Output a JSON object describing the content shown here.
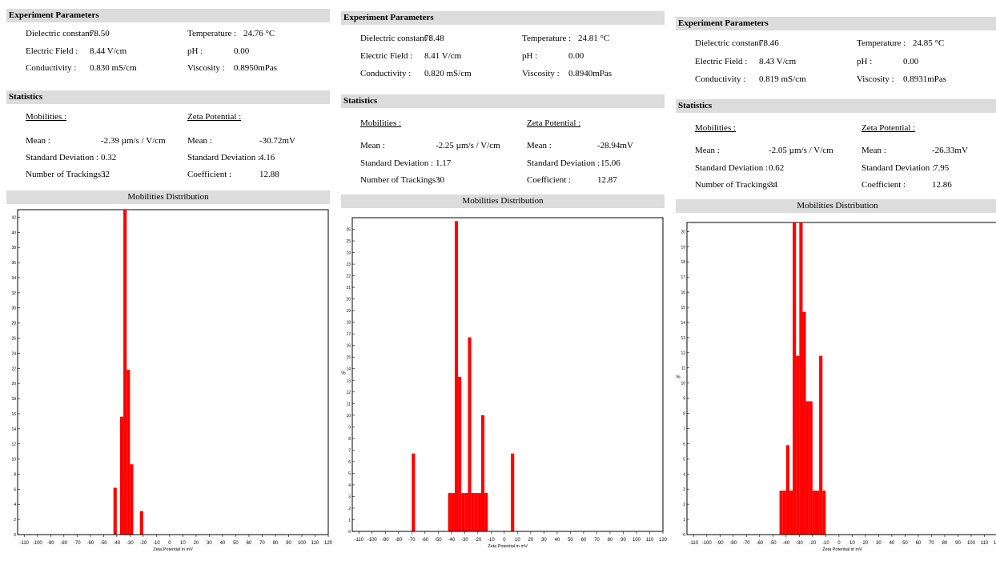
{
  "panels": [
    {
      "experiment": {
        "header": "Experiment Parameters",
        "dielectric_label": "Dielectric constant :",
        "dielectric": "78.50",
        "field_label": "Electric Field :",
        "field": "8.44 V/cm",
        "conductivity_label": "Conductivity :",
        "conductivity": "0.830 mS/cm",
        "temperature_label": "Temperature :",
        "temperature": "24.76 °C",
        "ph_label": "pH :",
        "ph": "0.00",
        "viscosity_label": "Viscosity :",
        "viscosity": "0.8950mPas"
      },
      "statistics": {
        "header": "Statistics",
        "mobilities_label": "Mobilities :",
        "zeta_label": "Zeta Potential :",
        "mean_label": "Mean :",
        "mob_mean": "-2.39 µm/s / V/cm",
        "sd_label": "Standard Deviation :",
        "mob_sd": "0.32",
        "n_label": "Number of Trackings :",
        "mob_n": "32",
        "zmean_label": "Mean :",
        "zeta_mean": "-30.72mV",
        "zsd_label": "Standard Deviation :",
        "zeta_sd": "4.16",
        "coef_label": "Coefficient :",
        "zeta_coef": "12.88"
      },
      "dist_header": "Mobilities Distribution"
    },
    {
      "experiment": {
        "header": "Experiment Parameters",
        "dielectric_label": "Dielectric constant :",
        "dielectric": "78.48",
        "field_label": "Electric Field :",
        "field": "8.41 V/cm",
        "conductivity_label": "Conductivity :",
        "conductivity": "0.820 mS/cm",
        "temperature_label": "Temperature :",
        "temperature": "24.81 °C",
        "ph_label": "pH :",
        "ph": "0.00",
        "viscosity_label": "Viscosity :",
        "viscosity": "0.8940mPas"
      },
      "statistics": {
        "header": "Statistics",
        "mobilities_label": "Mobilities :",
        "zeta_label": "Zeta Potential :",
        "mean_label": "Mean :",
        "mob_mean": "-2.25 µm/s / V/cm",
        "sd_label": "Standard Deviation :",
        "mob_sd": "1.17",
        "n_label": "Number of Trackings :",
        "mob_n": "30",
        "zmean_label": "Mean :",
        "zeta_mean": "-28.94mV",
        "zsd_label": "Standard Deviation :",
        "zeta_sd": "15.06",
        "coef_label": "Coefficient :",
        "zeta_coef": "12.87"
      },
      "dist_header": "Mobilities Distribution"
    },
    {
      "experiment": {
        "header": "Experiment Parameters",
        "dielectric_label": "Dielectric constant :",
        "dielectric": "78.46",
        "field_label": "Electric Field :",
        "field": "8.43 V/cm",
        "conductivity_label": "Conductivity :",
        "conductivity": "0.819 mS/cm",
        "temperature_label": "Temperature :",
        "temperature": "24.85 °C",
        "ph_label": "pH :",
        "ph": "0.00",
        "viscosity_label": "Viscosity :",
        "viscosity": "0.8931mPas"
      },
      "statistics": {
        "header": "Statistics",
        "mobilities_label": "Mobilities :",
        "zeta_label": "Zeta Potential :",
        "mean_label": "Mean :",
        "mob_mean": "-2.05 µm/s / V/cm",
        "sd_label": "Standard Deviation :",
        "mob_sd": "0.62",
        "n_label": "Number of Trackings :",
        "mob_n": "34",
        "zmean_label": "Mean :",
        "zeta_mean": "-26.33mV",
        "zsd_label": "Standard Deviation :",
        "zeta_sd": "7.95",
        "coef_label": "Coefficient :",
        "zeta_coef": "12.86"
      },
      "dist_header": "Mobilities Distribution"
    }
  ],
  "chart_data": [
    {
      "type": "bar",
      "xlabel": "Zeta Potential in mV",
      "ylabel": "",
      "xlim": [
        -115,
        120
      ],
      "xticks": [
        -110,
        -100,
        -90,
        -80,
        -70,
        -60,
        -50,
        -40,
        -30,
        -20,
        -10,
        0,
        10,
        20,
        30,
        40,
        50,
        60,
        70,
        80,
        90,
        100,
        110,
        120
      ],
      "ylim": [
        0,
        43
      ],
      "yticks": [
        0,
        2,
        4,
        6,
        8,
        10,
        12,
        14,
        16,
        18,
        20,
        22,
        24,
        26,
        28,
        30,
        32,
        34,
        36,
        38,
        40,
        42
      ],
      "bin_width": 2.5,
      "color": "#ff0000",
      "bins": [
        -42.5,
        -37.5,
        -35,
        -32.5,
        -30,
        -27.5,
        -22.5
      ],
      "values": [
        6.2,
        15.6,
        43,
        21.8,
        9.3,
        0,
        3.1
      ]
    },
    {
      "type": "bar",
      "xlabel": "Zeta Potential in mV",
      "ylabel": "%",
      "xlim": [
        -115,
        120
      ],
      "xticks": [
        -110,
        -100,
        -90,
        -80,
        -70,
        -60,
        -50,
        -40,
        -30,
        -20,
        -10,
        0,
        10,
        20,
        30,
        40,
        50,
        60,
        70,
        80,
        90,
        100,
        110,
        120
      ],
      "ylim": [
        0,
        27
      ],
      "yticks": [
        0,
        1,
        2,
        3,
        4,
        5,
        6,
        7,
        8,
        9,
        10,
        11,
        12,
        13,
        14,
        15,
        16,
        17,
        18,
        19,
        20,
        21,
        22,
        23,
        24,
        25,
        26
      ],
      "bin_width": 2.5,
      "color": "#ff0000",
      "bins": [
        -70,
        -42.5,
        -40,
        -37.5,
        -35,
        -32.5,
        -30,
        -27.5,
        -25,
        -22.5,
        -20,
        -17.5,
        -15,
        5
      ],
      "values": [
        6.7,
        3.3,
        3.3,
        26.7,
        13.3,
        3.3,
        3.3,
        16.7,
        3.3,
        3.3,
        3.3,
        10,
        3.3,
        6.7
      ]
    },
    {
      "type": "bar",
      "xlabel": "Zeta Potential in mV",
      "ylabel": "%",
      "xlim": [
        -115,
        120
      ],
      "xticks": [
        -110,
        -100,
        -90,
        -80,
        -70,
        -60,
        -50,
        -40,
        -30,
        -20,
        -10,
        0,
        10,
        20,
        30,
        40,
        50,
        60,
        70,
        80,
        90,
        100,
        110,
        120
      ],
      "ylim": [
        0,
        20.6
      ],
      "yticks": [
        0,
        1,
        2,
        3,
        4,
        5,
        6,
        7,
        8,
        9,
        10,
        11,
        12,
        13,
        14,
        15,
        16,
        17,
        18,
        19,
        20
      ],
      "bin_width": 2.5,
      "color": "#ff0000",
      "bins": [
        -45,
        -42.5,
        -40,
        -37.5,
        -35,
        -32.5,
        -30,
        -27.5,
        -25,
        -22.5,
        -20,
        -17.5,
        -15,
        -12.5
      ],
      "values": [
        2.9,
        2.9,
        5.9,
        2.9,
        20.6,
        11.8,
        20.6,
        14.7,
        8.8,
        8.8,
        2.9,
        2.9,
        11.8,
        2.9
      ]
    }
  ]
}
